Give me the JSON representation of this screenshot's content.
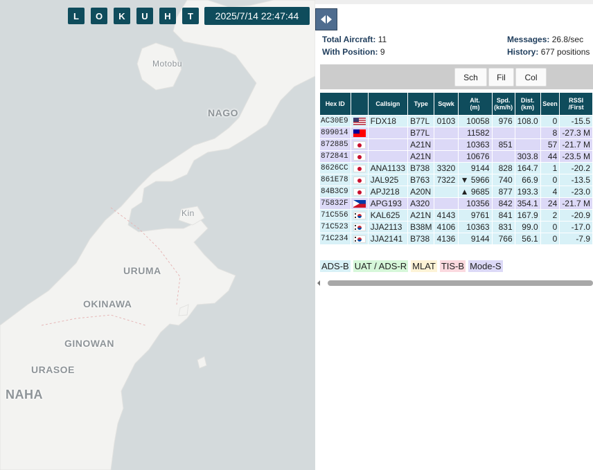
{
  "map": {
    "buttons": [
      "L",
      "O",
      "K",
      "U",
      "H",
      "T"
    ],
    "clock": "2025/7/14 22:47:44",
    "labels": {
      "motobu": "Motobu",
      "nago": "NAGO",
      "kin": "Kin",
      "uruma": "URUMA",
      "okinawa": "OKINAWA",
      "ginowan": "GINOWAN",
      "urasoe": "URASOE",
      "naha": "NAHA"
    }
  },
  "stats": {
    "total_label": "Total Aircraft:",
    "total_value": "11",
    "position_label": "With Position:",
    "position_value": "9",
    "messages_label": "Messages:",
    "messages_value": "26.8/sec",
    "history_label": "History:",
    "history_value": "677 positions"
  },
  "toolbar": {
    "sch": "Sch",
    "fil": "Fil",
    "col": "Col"
  },
  "table": {
    "headers": {
      "hex": "Hex ID",
      "flag": "",
      "callsign": "Callsign",
      "type": "Type",
      "sqwk": "Sqwk",
      "alt": "Alt.",
      "alt_unit": "(m)",
      "spd": "Spd.",
      "spd_unit": "(km/h)",
      "dist": "Dist.",
      "dist_unit": "(km)",
      "seen": "Seen",
      "rssi": "RSSI",
      "rssi_sub": "/First"
    },
    "rows": [
      {
        "hex": "AC30E9",
        "flag": "us",
        "callsign": "FDX18",
        "type": "B77L",
        "sqwk": "0103",
        "alt": "10058",
        "spd": "976",
        "dist": "108.0",
        "seen": "0",
        "rssi": "-15.5",
        "source": "adsb"
      },
      {
        "hex": "899014",
        "flag": "tw",
        "callsign": "",
        "type": "B77L",
        "sqwk": "",
        "alt": "11582",
        "spd": "",
        "dist": "",
        "seen": "8",
        "rssi": "-27.3 M",
        "source": "modes"
      },
      {
        "hex": "872885",
        "flag": "jp",
        "callsign": "",
        "type": "A21N",
        "sqwk": "",
        "alt": "10363",
        "spd": "851",
        "dist": "",
        "seen": "57",
        "rssi": "-21.7 M",
        "source": "modes"
      },
      {
        "hex": "872841",
        "flag": "jp",
        "callsign": "",
        "type": "A21N",
        "sqwk": "",
        "alt": "10676",
        "spd": "",
        "dist": "303.8",
        "seen": "44",
        "rssi": "-23.5 M",
        "source": "modes"
      },
      {
        "hex": "8626CC",
        "flag": "jp",
        "callsign": "ANA1133",
        "type": "B738",
        "sqwk": "3320",
        "alt": "9144",
        "spd": "828",
        "dist": "164.7",
        "seen": "1",
        "rssi": "-20.2",
        "source": "adsb"
      },
      {
        "hex": "861E78",
        "flag": "jp",
        "callsign": "JAL925",
        "type": "B763",
        "sqwk": "7322",
        "alt": "▼ 5966",
        "spd": "740",
        "dist": "66.9",
        "seen": "0",
        "rssi": "-13.5",
        "source": "adsb"
      },
      {
        "hex": "84B3C9",
        "flag": "jp",
        "callsign": "APJ218",
        "type": "A20N",
        "sqwk": "",
        "alt": "▲ 9685",
        "spd": "877",
        "dist": "193.3",
        "seen": "4",
        "rssi": "-23.0",
        "source": "adsb"
      },
      {
        "hex": "75832F",
        "flag": "ph",
        "callsign": "APG193",
        "type": "A320",
        "sqwk": "",
        "alt": "10356",
        "spd": "842",
        "dist": "354.1",
        "seen": "24",
        "rssi": "-21.7 M",
        "source": "modes"
      },
      {
        "hex": "71C556",
        "flag": "kr",
        "callsign": "KAL625",
        "type": "A21N",
        "sqwk": "4143",
        "alt": "9761",
        "spd": "841",
        "dist": "167.9",
        "seen": "2",
        "rssi": "-20.9",
        "source": "adsb"
      },
      {
        "hex": "71C523",
        "flag": "kr",
        "callsign": "JJA2113",
        "type": "B38M",
        "sqwk": "4106",
        "alt": "10363",
        "spd": "831",
        "dist": "99.0",
        "seen": "0",
        "rssi": "-17.0",
        "source": "adsb"
      },
      {
        "hex": "71C234",
        "flag": "kr",
        "callsign": "JJA2141",
        "type": "B738",
        "sqwk": "4136",
        "alt": "9144",
        "spd": "766",
        "dist": "56.1",
        "seen": "0",
        "rssi": "-7.9",
        "source": "adsb"
      }
    ]
  },
  "legend": [
    {
      "label": "ADS-B",
      "color": "#d8f1f7"
    },
    {
      "label": "UAT / ADS-R",
      "color": "#d6f7d9"
    },
    {
      "label": "MLAT",
      "color": "#fdf3d6"
    },
    {
      "label": "TIS-B",
      "color": "#fbd9df"
    },
    {
      "label": "Mode-S",
      "color": "#dcd9f7"
    }
  ]
}
